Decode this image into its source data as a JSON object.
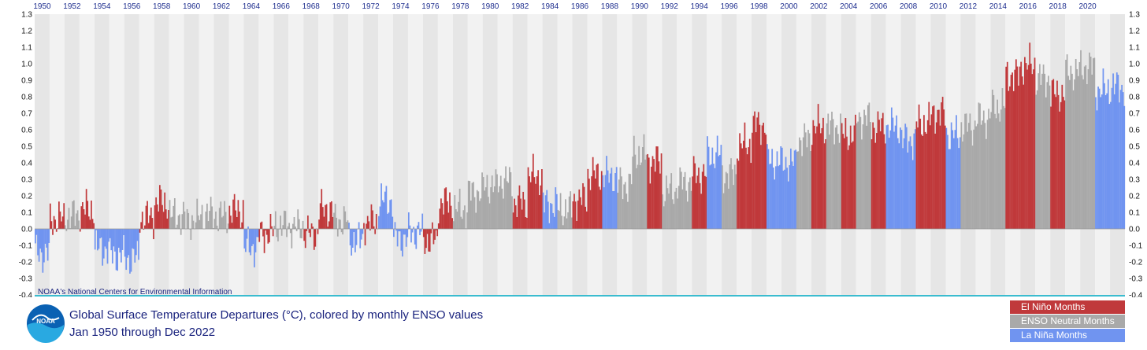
{
  "chart_data": {
    "type": "bar",
    "title": "Global Surface Temperature Departures (°C), colored by monthly ENSO values",
    "subtitle": "Jan 1950 through Dec 2022",
    "credit": "NOAA's National Centers for Environmental Information",
    "xlabel": "",
    "ylabel": "",
    "ylim": [
      -0.4,
      1.3
    ],
    "yticks": [
      "1.3",
      "1.2",
      "1.1",
      "1.0",
      "0.9",
      "0.8",
      "0.7",
      "0.6",
      "0.5",
      "0.4",
      "0.3",
      "0.2",
      "0.1",
      "0.0",
      "-0.1",
      "-0.2",
      "-0.3",
      "-0.4"
    ],
    "xticks": [
      "1950",
      "1952",
      "1954",
      "1956",
      "1958",
      "1960",
      "1962",
      "1964",
      "1966",
      "1968",
      "1970",
      "1972",
      "1974",
      "1976",
      "1978",
      "1980",
      "1982",
      "1984",
      "1986",
      "1988",
      "1990",
      "1992",
      "1994",
      "1996",
      "1998",
      "2000",
      "2002",
      "2004",
      "2006",
      "2008",
      "2010",
      "2012",
      "2014",
      "2016",
      "2018",
      "2020"
    ],
    "grid": "alternating year bands",
    "legend_position": "bottom-right",
    "categories_note": "monthly, Jan 1950 - Dec 2022",
    "series": [
      {
        "name": "El Niño Months",
        "color": "#c0393b"
      },
      {
        "name": "ENSO Neutral Months",
        "color": "#a9a9a9"
      },
      {
        "name": "La Niña Months",
        "color": "#7094f0"
      }
    ],
    "annual_values": [
      {
        "year": 1950,
        "value": -0.15,
        "phase": "L"
      },
      {
        "year": 1951,
        "value": 0.06,
        "phase": "E"
      },
      {
        "year": 1952,
        "value": 0.08,
        "phase": "N"
      },
      {
        "year": 1953,
        "value": 0.12,
        "phase": "E"
      },
      {
        "year": 1954,
        "value": -0.12,
        "phase": "L"
      },
      {
        "year": 1955,
        "value": -0.16,
        "phase": "L"
      },
      {
        "year": 1956,
        "value": -0.18,
        "phase": "L"
      },
      {
        "year": 1957,
        "value": 0.07,
        "phase": "E"
      },
      {
        "year": 1958,
        "value": 0.16,
        "phase": "E"
      },
      {
        "year": 1959,
        "value": 0.08,
        "phase": "N"
      },
      {
        "year": 1960,
        "value": 0.05,
        "phase": "N"
      },
      {
        "year": 1961,
        "value": 0.09,
        "phase": "N"
      },
      {
        "year": 1962,
        "value": 0.08,
        "phase": "N"
      },
      {
        "year": 1963,
        "value": 0.11,
        "phase": "E"
      },
      {
        "year": 1964,
        "value": -0.11,
        "phase": "L"
      },
      {
        "year": 1965,
        "value": -0.03,
        "phase": "E"
      },
      {
        "year": 1966,
        "value": 0.02,
        "phase": "N"
      },
      {
        "year": 1967,
        "value": 0.01,
        "phase": "N"
      },
      {
        "year": 1968,
        "value": -0.03,
        "phase": "E"
      },
      {
        "year": 1969,
        "value": 0.12,
        "phase": "E"
      },
      {
        "year": 1970,
        "value": 0.05,
        "phase": "N"
      },
      {
        "year": 1971,
        "value": -0.07,
        "phase": "L"
      },
      {
        "year": 1972,
        "value": 0.04,
        "phase": "E"
      },
      {
        "year": 1973,
        "value": 0.17,
        "phase": "L"
      },
      {
        "year": 1974,
        "value": -0.06,
        "phase": "L"
      },
      {
        "year": 1975,
        "value": -0.02,
        "phase": "L"
      },
      {
        "year": 1976,
        "value": -0.07,
        "phase": "E"
      },
      {
        "year": 1977,
        "value": 0.16,
        "phase": "E"
      },
      {
        "year": 1978,
        "value": 0.12,
        "phase": "N"
      },
      {
        "year": 1979,
        "value": 0.22,
        "phase": "N"
      },
      {
        "year": 1980,
        "value": 0.26,
        "phase": "N"
      },
      {
        "year": 1981,
        "value": 0.29,
        "phase": "N"
      },
      {
        "year": 1982,
        "value": 0.16,
        "phase": "E"
      },
      {
        "year": 1983,
        "value": 0.32,
        "phase": "E"
      },
      {
        "year": 1984,
        "value": 0.15,
        "phase": "L"
      },
      {
        "year": 1985,
        "value": 0.12,
        "phase": "N"
      },
      {
        "year": 1986,
        "value": 0.18,
        "phase": "E"
      },
      {
        "year": 1987,
        "value": 0.33,
        "phase": "E"
      },
      {
        "year": 1988,
        "value": 0.32,
        "phase": "L"
      },
      {
        "year": 1989,
        "value": 0.27,
        "phase": "N"
      },
      {
        "year": 1990,
        "value": 0.45,
        "phase": "N"
      },
      {
        "year": 1991,
        "value": 0.41,
        "phase": "E"
      },
      {
        "year": 1992,
        "value": 0.23,
        "phase": "N"
      },
      {
        "year": 1993,
        "value": 0.28,
        "phase": "N"
      },
      {
        "year": 1994,
        "value": 0.33,
        "phase": "E"
      },
      {
        "year": 1995,
        "value": 0.45,
        "phase": "L"
      },
      {
        "year": 1996,
        "value": 0.33,
        "phase": "N"
      },
      {
        "year": 1997,
        "value": 0.51,
        "phase": "E"
      },
      {
        "year": 1998,
        "value": 0.63,
        "phase": "E"
      },
      {
        "year": 1999,
        "value": 0.41,
        "phase": "L"
      },
      {
        "year": 2000,
        "value": 0.4,
        "phase": "L"
      },
      {
        "year": 2001,
        "value": 0.54,
        "phase": "N"
      },
      {
        "year": 2002,
        "value": 0.62,
        "phase": "E"
      },
      {
        "year": 2003,
        "value": 0.62,
        "phase": "N"
      },
      {
        "year": 2004,
        "value": 0.57,
        "phase": "E"
      },
      {
        "year": 2005,
        "value": 0.67,
        "phase": "N"
      },
      {
        "year": 2006,
        "value": 0.62,
        "phase": "E"
      },
      {
        "year": 2007,
        "value": 0.62,
        "phase": "L"
      },
      {
        "year": 2008,
        "value": 0.54,
        "phase": "L"
      },
      {
        "year": 2009,
        "value": 0.64,
        "phase": "E"
      },
      {
        "year": 2010,
        "value": 0.7,
        "phase": "E"
      },
      {
        "year": 2011,
        "value": 0.57,
        "phase": "L"
      },
      {
        "year": 2012,
        "value": 0.62,
        "phase": "N"
      },
      {
        "year": 2013,
        "value": 0.67,
        "phase": "N"
      },
      {
        "year": 2014,
        "value": 0.74,
        "phase": "N"
      },
      {
        "year": 2015,
        "value": 0.93,
        "phase": "E"
      },
      {
        "year": 2016,
        "value": 0.99,
        "phase": "E"
      },
      {
        "year": 2017,
        "value": 0.91,
        "phase": "N"
      },
      {
        "year": 2018,
        "value": 0.82,
        "phase": "E"
      },
      {
        "year": 2019,
        "value": 0.95,
        "phase": "N"
      },
      {
        "year": 2020,
        "value": 0.98,
        "phase": "N"
      },
      {
        "year": 2021,
        "value": 0.84,
        "phase": "L"
      },
      {
        "year": 2022,
        "value": 0.86,
        "phase": "L"
      }
    ]
  },
  "legend": {
    "el_nino": "El Niño Months",
    "neutral": "ENSO Neutral Months",
    "la_nina": "La Niña Months"
  },
  "logo_text": "NOAA",
  "colors": {
    "el_nino": "#c0393b",
    "neutral": "#a9a9a9",
    "la_nina": "#7094f0",
    "title": "#1a237e",
    "axis_line": "#3bbccf"
  }
}
